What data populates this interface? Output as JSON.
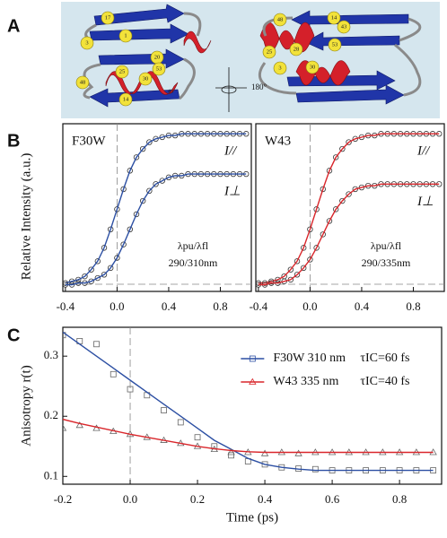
{
  "panel_labels": [
    "A",
    "B",
    "C"
  ],
  "rotation_label": "180°",
  "structure_labels": [
    "17",
    "1",
    "3",
    "20",
    "53",
    "25",
    "30",
    "48",
    "14",
    "43",
    "48",
    "14",
    "43",
    "53",
    "25",
    "28",
    "3",
    "30"
  ],
  "chart_data": [
    {
      "type": "line",
      "title": "F30W",
      "ylabel": "Relative Intensity (a.u.)",
      "annotations": [
        "λpu/λfl",
        "290/310nm"
      ],
      "xlim": [
        -0.42,
        1.04
      ],
      "ylim": [
        0,
        1
      ],
      "xticks": [
        -0.4,
        {
          "value": 0,
          "label": "0.0"
        },
        0.4,
        0.8
      ],
      "x": [
        -0.4,
        -0.35,
        -0.3,
        -0.25,
        -0.2,
        -0.15,
        -0.1,
        -0.05,
        0,
        0.05,
        0.1,
        0.15,
        0.2,
        0.25,
        0.3,
        0.35,
        0.4,
        0.45,
        0.5,
        0.55,
        0.6,
        0.65,
        0.7,
        0.75,
        0.8,
        0.85,
        0.9,
        0.95,
        1.0
      ],
      "series": [
        {
          "name": "I//",
          "color": "#2c4fa3",
          "marker": "circle",
          "marker_color": "#333333",
          "values": [
            0.05,
            0.06,
            0.07,
            0.09,
            0.13,
            0.18,
            0.26,
            0.37,
            0.49,
            0.61,
            0.72,
            0.8,
            0.85,
            0.89,
            0.91,
            0.92,
            0.93,
            0.93,
            0.94,
            0.94,
            0.94,
            0.94,
            0.94,
            0.94,
            0.94,
            0.94,
            0.94,
            0.94,
            0.94
          ]
        },
        {
          "name": "I⊥",
          "color": "#2c4fa3",
          "marker": "circle",
          "marker_color": "#333333",
          "values": [
            0.04,
            0.04,
            0.05,
            0.05,
            0.06,
            0.08,
            0.1,
            0.14,
            0.2,
            0.28,
            0.37,
            0.46,
            0.54,
            0.6,
            0.64,
            0.66,
            0.68,
            0.69,
            0.69,
            0.7,
            0.7,
            0.7,
            0.7,
            0.7,
            0.7,
            0.7,
            0.7,
            0.7,
            0.7
          ]
        }
      ]
    },
    {
      "type": "line",
      "title": "W43",
      "annotations": [
        "λpu/λfl",
        "290/335nm"
      ],
      "xlim": [
        -0.42,
        1.04
      ],
      "ylim": [
        0,
        1
      ],
      "xticks": [
        -0.4,
        {
          "value": 0,
          "label": "0.0"
        },
        0.4,
        0.8
      ],
      "x": [
        -0.4,
        -0.35,
        -0.3,
        -0.25,
        -0.2,
        -0.15,
        -0.1,
        -0.05,
        0,
        0.05,
        0.1,
        0.15,
        0.2,
        0.25,
        0.3,
        0.35,
        0.4,
        0.45,
        0.5,
        0.55,
        0.6,
        0.65,
        0.7,
        0.75,
        0.8,
        0.85,
        0.9,
        0.95,
        1.0
      ],
      "series": [
        {
          "name": "I//",
          "color": "#d9262b",
          "marker": "circle",
          "marker_color": "#333333",
          "values": [
            0.05,
            0.05,
            0.06,
            0.07,
            0.09,
            0.13,
            0.18,
            0.26,
            0.37,
            0.49,
            0.61,
            0.72,
            0.8,
            0.85,
            0.89,
            0.91,
            0.92,
            0.93,
            0.93,
            0.94,
            0.94,
            0.94,
            0.94,
            0.94,
            0.94,
            0.94,
            0.94,
            0.94,
            0.94
          ]
        },
        {
          "name": "I⊥",
          "color": "#d9262b",
          "marker": "circle",
          "marker_color": "#333333",
          "values": [
            0.04,
            0.04,
            0.05,
            0.05,
            0.06,
            0.07,
            0.1,
            0.14,
            0.19,
            0.26,
            0.34,
            0.42,
            0.49,
            0.54,
            0.58,
            0.61,
            0.62,
            0.63,
            0.63,
            0.64,
            0.64,
            0.64,
            0.64,
            0.64,
            0.64,
            0.64,
            0.64,
            0.64,
            0.64
          ]
        }
      ]
    },
    {
      "type": "line",
      "xlabel": "Time (ps)",
      "ylabel": "Anisotropy r(t)",
      "legend": "upper right",
      "xlim": [
        -0.2,
        0.925
      ],
      "ylim": [
        0.087,
        0.348
      ],
      "xticks": [
        -0.2,
        {
          "value": 0,
          "label": "0.0"
        },
        0.2,
        0.4,
        0.6,
        0.8
      ],
      "yticks": [
        0.1,
        0.2,
        0.3
      ],
      "x": [
        -0.2,
        -0.15,
        -0.1,
        -0.05,
        0,
        0.05,
        0.1,
        0.15,
        0.2,
        0.25,
        0.3,
        0.35,
        0.4,
        0.45,
        0.5,
        0.55,
        0.6,
        0.65,
        0.7,
        0.75,
        0.8,
        0.85,
        0.9
      ],
      "series": [
        {
          "name": "F30W 310 nm",
          "note": "τIC=60 fs",
          "color": "#2c4fa3",
          "marker": "square",
          "marker_color": "#666666",
          "values": [
            0.335,
            0.325,
            0.32,
            0.27,
            0.245,
            0.235,
            0.21,
            0.19,
            0.165,
            0.15,
            0.135,
            0.125,
            0.12,
            0.115,
            0.113,
            0.112,
            0.11,
            0.11,
            0.11,
            0.11,
            0.11,
            0.11,
            0.11
          ],
          "fit": [
            0.34,
            0.32,
            0.3,
            0.28,
            0.26,
            0.24,
            0.22,
            0.2,
            0.18,
            0.16,
            0.145,
            0.13,
            0.12,
            0.115,
            0.112,
            0.11,
            0.11,
            0.11,
            0.11,
            0.11,
            0.11,
            0.11,
            0.11
          ]
        },
        {
          "name": "W43 335 nm",
          "note": "τIC=40 fs",
          "color": "#d9262b",
          "marker": "triangle",
          "marker_color": "#666666",
          "values": [
            0.18,
            0.185,
            0.18,
            0.175,
            0.17,
            0.165,
            0.16,
            0.155,
            0.15,
            0.145,
            0.14,
            0.14,
            0.138,
            0.14,
            0.138,
            0.14,
            0.14,
            0.14,
            0.14,
            0.14,
            0.14,
            0.14,
            0.14
          ],
          "fit": [
            0.195,
            0.188,
            0.182,
            0.176,
            0.17,
            0.165,
            0.16,
            0.155,
            0.15,
            0.146,
            0.143,
            0.141,
            0.14,
            0.14,
            0.14,
            0.14,
            0.14,
            0.14,
            0.14,
            0.14,
            0.14,
            0.14,
            0.14
          ]
        }
      ]
    }
  ]
}
